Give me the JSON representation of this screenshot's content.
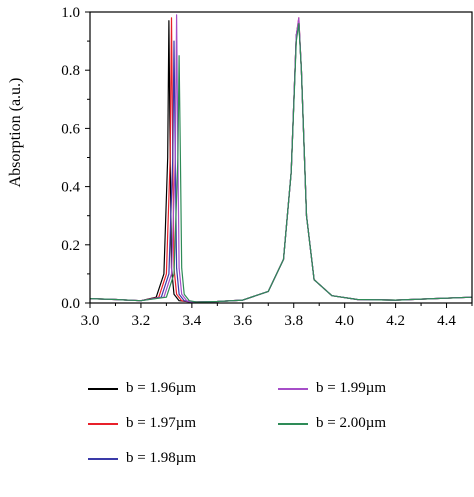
{
  "chart_data": {
    "type": "line",
    "title": "",
    "xlabel": "Wavelength/µm",
    "ylabel": "Absorption (a.u.)",
    "xlim": [
      3.0,
      4.5
    ],
    "ylim": [
      0.0,
      1.0
    ],
    "xticks": [
      "3.0",
      "3.2",
      "3.4",
      "3.6",
      "3.8",
      "4.0",
      "4.2",
      "4.4"
    ],
    "yticks": [
      "0.0",
      "0.2",
      "0.4",
      "0.6",
      "0.8",
      "1.0"
    ],
    "grid": false,
    "legend_position": "bottom",
    "series": [
      {
        "name": "b = 1.96µm",
        "color": "#000000",
        "x": [
          3.0,
          3.1,
          3.2,
          3.26,
          3.29,
          3.305,
          3.31,
          3.315,
          3.32,
          3.33,
          3.35,
          3.4,
          3.5,
          3.6,
          3.7,
          3.76,
          3.79,
          3.81,
          3.82,
          3.83,
          3.85,
          3.88,
          3.95,
          4.05,
          4.2,
          4.35,
          4.5
        ],
        "y": [
          0.015,
          0.012,
          0.008,
          0.02,
          0.1,
          0.5,
          0.97,
          0.5,
          0.12,
          0.03,
          0.008,
          0.003,
          0.005,
          0.01,
          0.04,
          0.15,
          0.45,
          0.92,
          0.97,
          0.8,
          0.3,
          0.08,
          0.025,
          0.012,
          0.01,
          0.015,
          0.02
        ]
      },
      {
        "name": "b = 1.97µm",
        "color": "#e8202a",
        "x": [
          3.0,
          3.1,
          3.2,
          3.27,
          3.3,
          3.315,
          3.32,
          3.325,
          3.33,
          3.34,
          3.36,
          3.4,
          3.5,
          3.6,
          3.7,
          3.76,
          3.79,
          3.81,
          3.82,
          3.83,
          3.85,
          3.88,
          3.95,
          4.05,
          4.2,
          4.35,
          4.5
        ],
        "y": [
          0.015,
          0.012,
          0.008,
          0.02,
          0.1,
          0.5,
          0.98,
          0.5,
          0.12,
          0.03,
          0.008,
          0.003,
          0.005,
          0.01,
          0.04,
          0.15,
          0.45,
          0.92,
          0.98,
          0.8,
          0.3,
          0.08,
          0.025,
          0.012,
          0.01,
          0.015,
          0.02
        ]
      },
      {
        "name": "b = 1.98µm",
        "color": "#3a3aa8",
        "x": [
          3.0,
          3.1,
          3.2,
          3.28,
          3.31,
          3.325,
          3.33,
          3.335,
          3.34,
          3.35,
          3.37,
          3.4,
          3.5,
          3.6,
          3.7,
          3.76,
          3.79,
          3.81,
          3.82,
          3.83,
          3.85,
          3.88,
          3.95,
          4.05,
          4.2,
          4.35,
          4.5
        ],
        "y": [
          0.015,
          0.012,
          0.008,
          0.02,
          0.1,
          0.5,
          0.9,
          0.5,
          0.12,
          0.03,
          0.008,
          0.003,
          0.005,
          0.01,
          0.04,
          0.15,
          0.45,
          0.92,
          0.97,
          0.8,
          0.3,
          0.08,
          0.025,
          0.012,
          0.01,
          0.015,
          0.02
        ]
      },
      {
        "name": "b = 1.99µm",
        "color": "#a64ec8",
        "x": [
          3.0,
          3.1,
          3.2,
          3.29,
          3.32,
          3.335,
          3.34,
          3.345,
          3.35,
          3.36,
          3.38,
          3.4,
          3.5,
          3.6,
          3.7,
          3.76,
          3.79,
          3.81,
          3.82,
          3.83,
          3.85,
          3.88,
          3.95,
          4.05,
          4.2,
          4.35,
          4.5
        ],
        "y": [
          0.015,
          0.012,
          0.008,
          0.02,
          0.1,
          0.5,
          0.99,
          0.5,
          0.12,
          0.03,
          0.008,
          0.003,
          0.005,
          0.01,
          0.04,
          0.15,
          0.45,
          0.92,
          0.98,
          0.8,
          0.3,
          0.08,
          0.025,
          0.012,
          0.01,
          0.015,
          0.02
        ]
      },
      {
        "name": "b = 2.00µm",
        "color": "#2e8b57",
        "x": [
          3.0,
          3.1,
          3.2,
          3.3,
          3.33,
          3.345,
          3.35,
          3.355,
          3.36,
          3.37,
          3.39,
          3.42,
          3.5,
          3.6,
          3.7,
          3.76,
          3.79,
          3.81,
          3.82,
          3.83,
          3.85,
          3.88,
          3.95,
          4.05,
          4.2,
          4.35,
          4.5
        ],
        "y": [
          0.015,
          0.012,
          0.008,
          0.02,
          0.1,
          0.5,
          0.85,
          0.5,
          0.12,
          0.03,
          0.008,
          0.003,
          0.005,
          0.01,
          0.04,
          0.15,
          0.45,
          0.9,
          0.96,
          0.8,
          0.3,
          0.08,
          0.025,
          0.012,
          0.01,
          0.015,
          0.02
        ]
      }
    ]
  }
}
